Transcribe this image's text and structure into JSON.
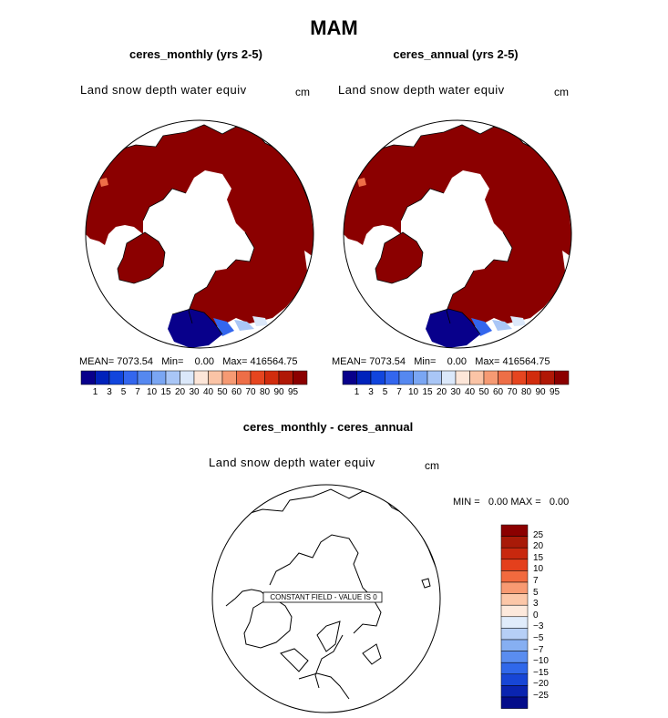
{
  "figure": {
    "title": "MAM"
  },
  "colors": {
    "ocean": "#ffffff",
    "snow_fill": "#8b0000",
    "coast": "#000000",
    "levels": [
      "#08008b",
      "#0022bb",
      "#1145dd",
      "#3366ee",
      "#5588f0",
      "#7aa6f3",
      "#a9c6f6",
      "#dbe8fa",
      "#fde6d8",
      "#fbc4a6",
      "#f69a73",
      "#ee6e47",
      "#e6451f",
      "#d12c0d",
      "#b01806",
      "#8b0000"
    ]
  },
  "panels": [
    {
      "subtitle": "ceres_monthly (yrs 2-5)",
      "variable": "Land snow depth water equiv",
      "units": "cm",
      "mean_label": "MEAN=",
      "mean": "7073.54",
      "min_label": "Min=",
      "min": "0.00",
      "max_label": "Max=",
      "max": "416564.75",
      "colorbar_ticks": [
        "1",
        "3",
        "5",
        "7",
        "10",
        "15",
        "20",
        "30",
        "40",
        "50",
        "60",
        "70",
        "80",
        "90",
        "95"
      ]
    },
    {
      "subtitle": "ceres_annual (yrs 2-5)",
      "variable": "Land snow depth water equiv",
      "units": "cm",
      "mean_label": "MEAN=",
      "mean": "7073.54",
      "min_label": "Min=",
      "min": "0.00",
      "max_label": "Max=",
      "max": "416564.75",
      "colorbar_ticks": [
        "1",
        "3",
        "5",
        "7",
        "10",
        "15",
        "20",
        "30",
        "40",
        "50",
        "60",
        "70",
        "80",
        "90",
        "95"
      ]
    }
  ],
  "diff_panel": {
    "subtitle": "ceres_monthly - ceres_annual",
    "variable": "Land snow depth water equiv",
    "units": "cm",
    "min_label": "MIN =",
    "min": "0.00",
    "max_label": "MAX =",
    "max": "0.00",
    "constant_field_note": "CONSTANT FIELD - VALUE IS 0",
    "colorbar_ticks": [
      "25",
      "20",
      "15",
      "10",
      "7",
      "5",
      "3",
      "0",
      "−3",
      "−5",
      "−7",
      "−10",
      "−15",
      "−20",
      "−25"
    ],
    "colorbar_colors": [
      "#8b0000",
      "#a81a08",
      "#c8280e",
      "#e4401c",
      "#f26a3e",
      "#f89a72",
      "#fcc7a8",
      "#fde9dc",
      "#e0ecfb",
      "#b6cff6",
      "#86aff2",
      "#5a8df0",
      "#3068ea",
      "#1746d6",
      "#0a24b0",
      "#040c8a"
    ]
  },
  "chart_data": [
    {
      "type": "heatmap",
      "title": "ceres_monthly (yrs 2-5)",
      "variable": "Land snow depth water equiv",
      "units": "cm",
      "projection": "north polar stereographic",
      "stats": {
        "mean": 7073.54,
        "min": 0.0,
        "max": 416564.75
      },
      "levels": [
        1,
        3,
        5,
        7,
        10,
        15,
        20,
        30,
        40,
        50,
        60,
        70,
        80,
        90,
        95
      ]
    },
    {
      "type": "heatmap",
      "title": "ceres_annual (yrs 2-5)",
      "variable": "Land snow depth water equiv",
      "units": "cm",
      "projection": "north polar stereographic",
      "stats": {
        "mean": 7073.54,
        "min": 0.0,
        "max": 416564.75
      },
      "levels": [
        1,
        3,
        5,
        7,
        10,
        15,
        20,
        30,
        40,
        50,
        60,
        70,
        80,
        90,
        95
      ]
    },
    {
      "type": "heatmap",
      "title": "ceres_monthly - ceres_annual",
      "variable": "Land snow depth water equiv",
      "units": "cm",
      "projection": "north polar stereographic",
      "stats": {
        "min": 0.0,
        "max": 0.0
      },
      "constant_value": 0,
      "levels": [
        -25,
        -20,
        -15,
        -10,
        -7,
        -5,
        -3,
        0,
        3,
        5,
        7,
        10,
        15,
        20,
        25
      ]
    }
  ]
}
